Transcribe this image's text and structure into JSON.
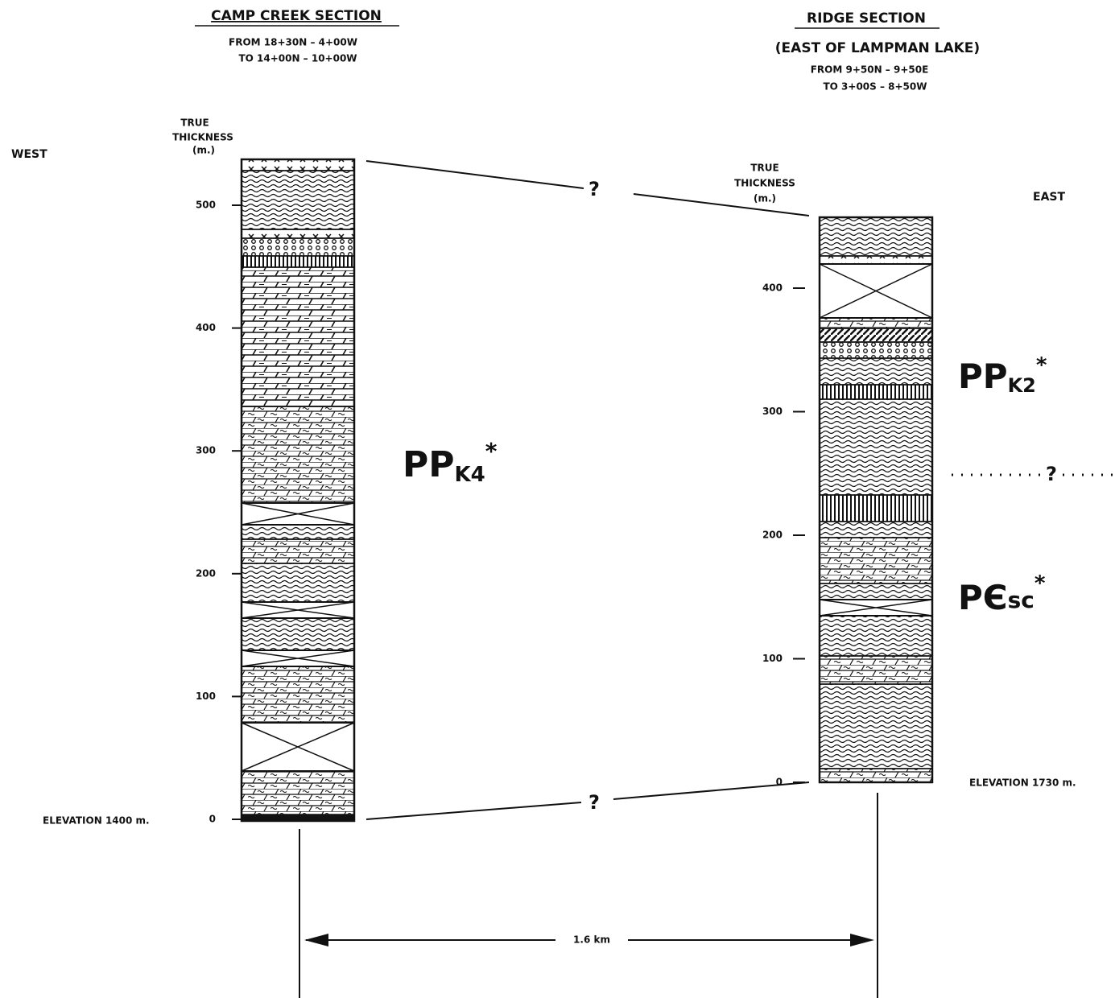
{
  "west_section": {
    "title": "CAMP CREEK SECTION",
    "from": "FROM 18+30N – 4+00W",
    "to": "TO 14+00N – 10+00W",
    "axis_label": [
      "TRUE",
      "THICKNESS",
      "(m.)"
    ],
    "side": "WEST",
    "ticks": [
      0,
      100,
      200,
      300,
      400,
      500
    ],
    "elevation": "ELEVATION 1400 m.",
    "unit": {
      "main": "PP",
      "sub": "K4",
      "mark": "*"
    }
  },
  "east_section": {
    "title": "RIDGE SECTION",
    "subtitle": "(EAST OF LAMPMAN LAKE)",
    "from": "FROM 9+50N – 9+50E",
    "to": "TO 3+00S – 8+50W",
    "axis_label": [
      "TRUE",
      "THICKNESS",
      "(m.)"
    ],
    "side": "EAST",
    "ticks": [
      0,
      100,
      200,
      300,
      400
    ],
    "elevation": "ELEVATION 1730 m.",
    "units": [
      {
        "main": "PP",
        "sub": "K2",
        "mark": "*"
      },
      {
        "main": "PЄ",
        "sub": "sc",
        "mark": "*"
      }
    ]
  },
  "correlation": {
    "top": "?",
    "bottom": "?",
    "contact": "?"
  },
  "distance": "1.6 km"
}
